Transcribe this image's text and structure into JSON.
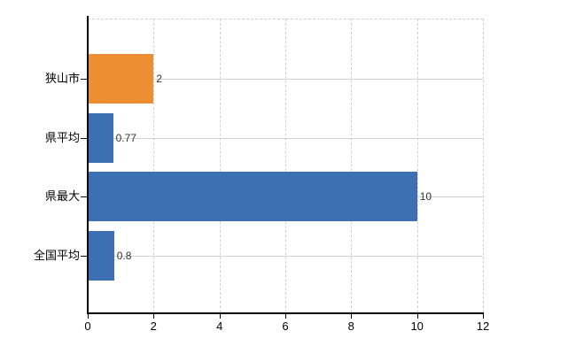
{
  "chart_data": {
    "type": "bar",
    "orientation": "horizontal",
    "categories": [
      "狭山市",
      "県平均",
      "県最大",
      "全国平均"
    ],
    "values": [
      2,
      0.77,
      10,
      0.8
    ],
    "value_labels": [
      "2",
      "0.77",
      "10",
      "0.8"
    ],
    "bar_colors": [
      "#ed8e32",
      "#3d70b3",
      "#3d70b3",
      "#3d70b3"
    ],
    "xlim": [
      0,
      12
    ],
    "x_ticks": [
      "0",
      "2",
      "4",
      "6",
      "8",
      "10",
      "12"
    ],
    "x_tick_values": [
      0,
      2,
      4,
      6,
      8,
      10,
      12
    ],
    "grid": true,
    "legend": false,
    "colors": {
      "axis": "#000000",
      "h_grid": "#cfd6cd",
      "v_grid_dashed": "#d6ced6",
      "category_label": "#000000",
      "value_label": "#333333",
      "background": "#ffffff"
    }
  }
}
